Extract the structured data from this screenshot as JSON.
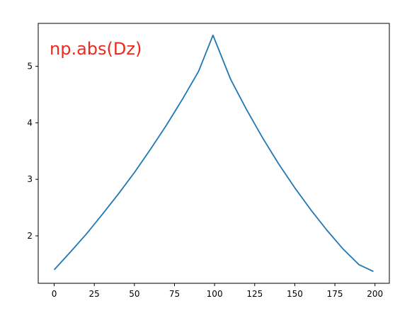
{
  "chart_data": {
    "type": "line",
    "title": "",
    "xlabel": "",
    "ylabel": "",
    "xlim": [
      -9.95,
      208.95
    ],
    "ylim": [
      1.16,
      5.76
    ],
    "xticks": [
      0,
      25,
      50,
      75,
      100,
      125,
      150,
      175,
      200
    ],
    "yticks": [
      2,
      3,
      4,
      5
    ],
    "xtick_labels": [
      "0",
      "25",
      "50",
      "75",
      "100",
      "125",
      "150",
      "175",
      "200"
    ],
    "ytick_labels": [
      "2",
      "3",
      "4",
      "5"
    ],
    "annotation": {
      "text": "np.abs(Dz)",
      "color": "#ee2a1c"
    },
    "line_color": "#1f77b4",
    "grid": false,
    "series": [
      {
        "x": [
          0,
          10,
          20,
          30,
          40,
          50,
          60,
          70,
          80,
          90,
          99,
          110,
          120,
          130,
          140,
          150,
          160,
          170,
          180,
          190,
          199
        ],
        "y": [
          1.4,
          1.71,
          2.03,
          2.38,
          2.74,
          3.12,
          3.53,
          3.96,
          4.42,
          4.91,
          5.55,
          4.77,
          4.23,
          3.73,
          3.27,
          2.85,
          2.46,
          2.1,
          1.77,
          1.49,
          1.37
        ]
      }
    ]
  }
}
